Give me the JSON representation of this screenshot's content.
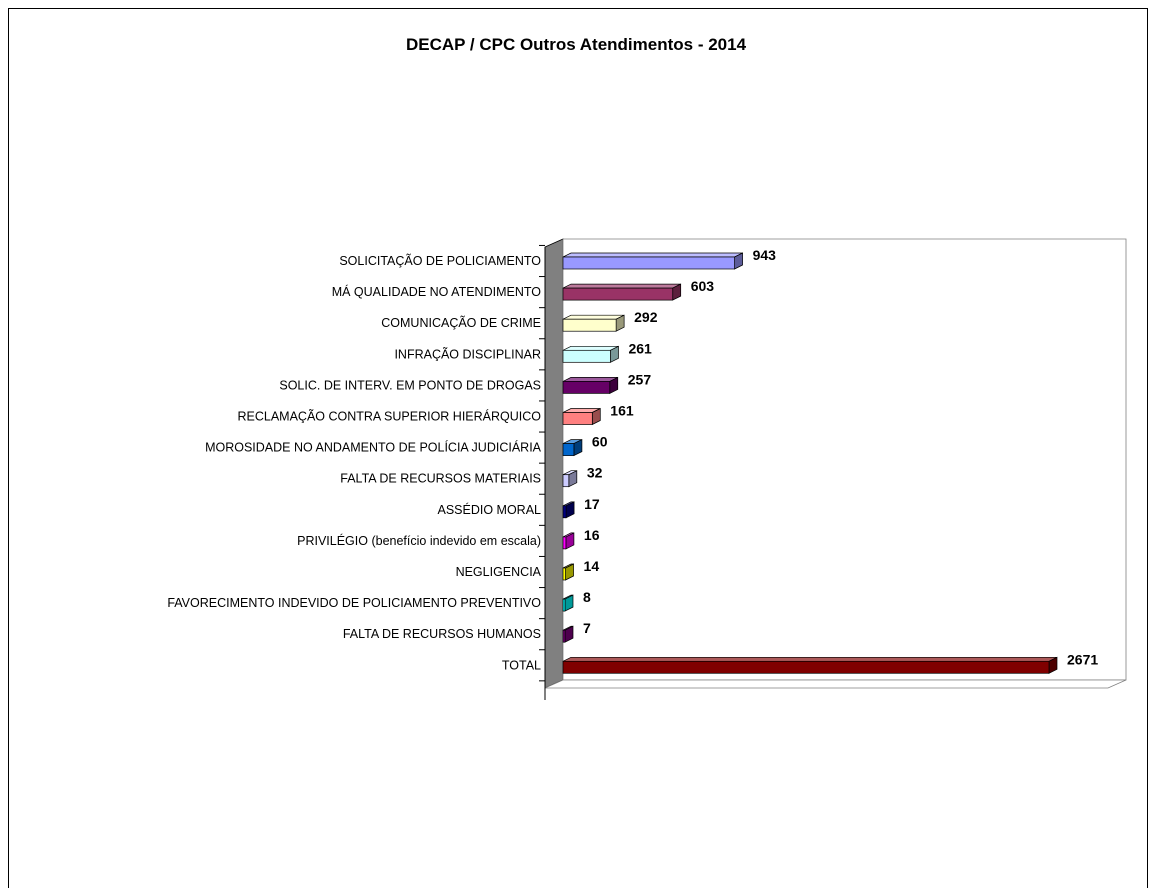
{
  "chart_data": {
    "type": "bar",
    "orientation": "horizontal",
    "title": "DECAP / CPC Outros Atendimentos - 2014",
    "xlabel": "",
    "ylabel": "",
    "grid": false,
    "legend": "none",
    "xlim": [
      0,
      2800
    ],
    "categories": [
      "SOLICITAÇÃO DE POLICIAMENTO",
      "MÁ QUALIDADE NO ATENDIMENTO",
      "COMUNICAÇÃO DE CRIME",
      "INFRAÇÃO DISCIPLINAR",
      "SOLIC. DE INTERV. EM PONTO DE DROGAS",
      "RECLAMAÇÃO CONTRA SUPERIOR HIERÁRQUICO",
      "MOROSIDADE NO ANDAMENTO DE POLÍCIA JUDICIÁRIA",
      "FALTA DE RECURSOS MATERIAIS",
      "ASSÉDIO MORAL",
      "PRIVILÉGIO (benefício indevido em escala)",
      "NEGLIGENCIA",
      "FAVORECIMENTO INDEVIDO DE POLICIAMENTO PREVENTIVO",
      "FALTA DE RECURSOS HUMANOS",
      "TOTAL"
    ],
    "values": [
      943,
      603,
      292,
      261,
      257,
      161,
      60,
      32,
      17,
      16,
      14,
      8,
      7,
      2671
    ],
    "value_labels": [
      "943",
      "603",
      "292",
      "261",
      "257",
      "161",
      "60",
      "32",
      "17",
      "16",
      "14",
      "8",
      "7",
      "2671"
    ],
    "colors": [
      "#9999ff",
      "#993366",
      "#ffffcc",
      "#ccffff",
      "#660066",
      "#ff8080",
      "#0066cc",
      "#ccccff",
      "#000080",
      "#ff00ff",
      "#ffff00",
      "#00ffff",
      "#800080",
      "#800000"
    ]
  }
}
